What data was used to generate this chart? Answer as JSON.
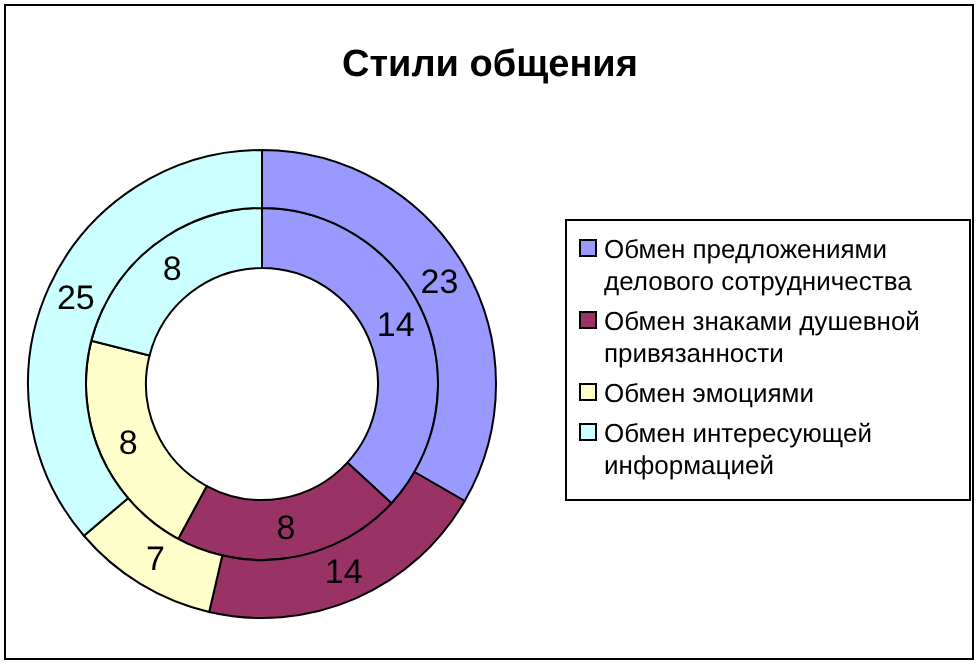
{
  "chart_data": {
    "type": "donut",
    "title": "Стили общения",
    "categories": [
      "Обмен предложениями делового сотрудничества",
      "Обмен знаками душевной привязанности",
      "Обмен эмоциями",
      "Обмен интересующей информацией"
    ],
    "colors": [
      "#9999ff",
      "#993366",
      "#ffffcc",
      "#ccffff"
    ],
    "series": [
      {
        "values": [
          14,
          8,
          8,
          8
        ]
      },
      {
        "values": [
          23,
          14,
          7,
          25
        ]
      }
    ],
    "data_labels": true,
    "legend": "right"
  }
}
